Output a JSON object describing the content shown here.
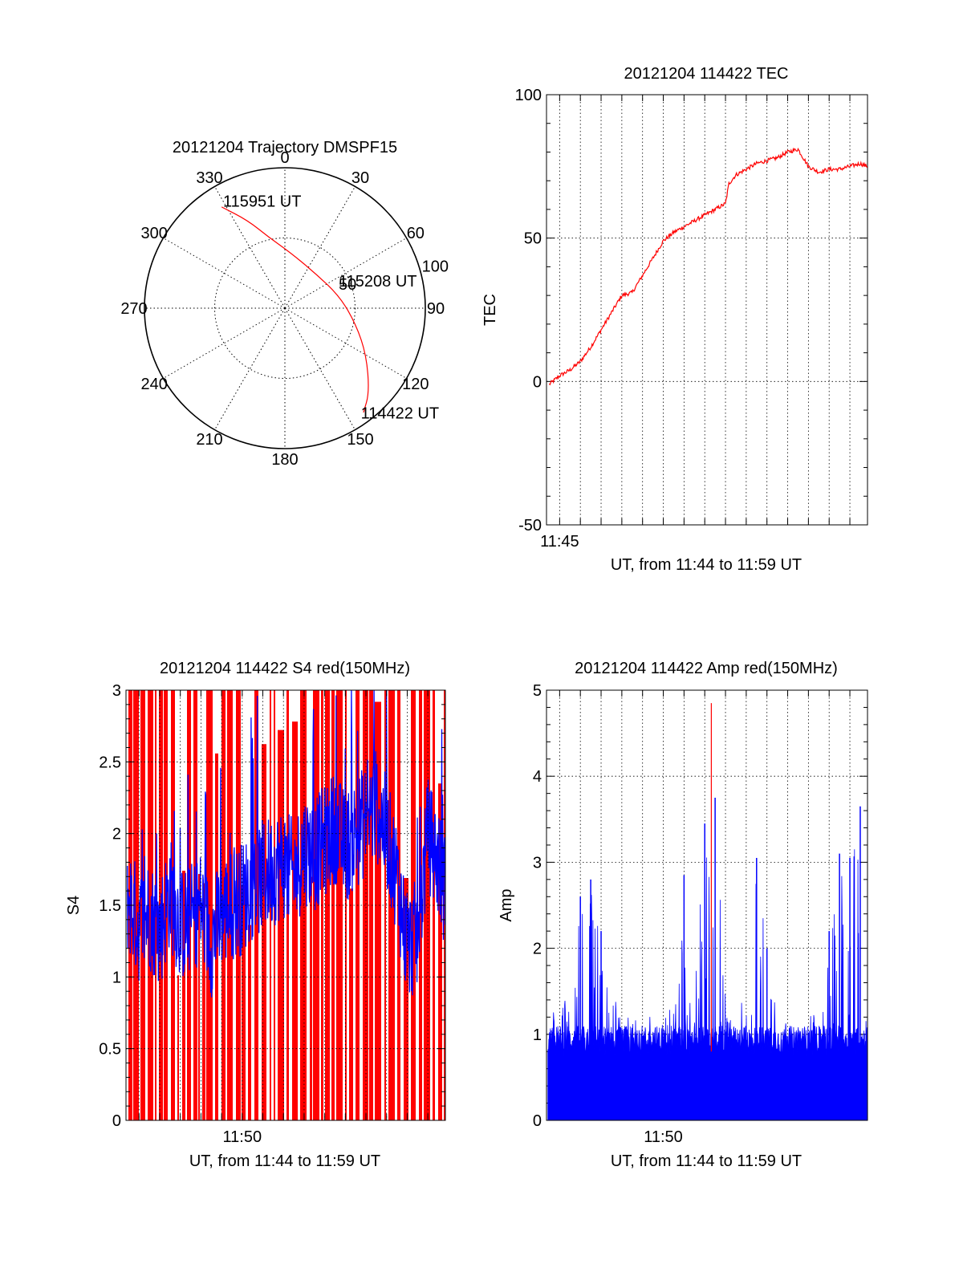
{
  "colors": {
    "red": "#ff0000",
    "blue": "#0000ff",
    "black": "#000000"
  },
  "chart_data": [
    {
      "type": "polar-trajectory",
      "title": "20121204 Trajectory DMSPF15",
      "angle_labels": [
        "0",
        "30",
        "60",
        "90",
        "120",
        "150",
        "180",
        "210",
        "240",
        "270",
        "300",
        "330"
      ],
      "radial_ticks": [
        50,
        100
      ],
      "radial_tick_labels": [
        "50",
        "100"
      ],
      "rmax": 100,
      "grid": "dotted",
      "annotations": [
        {
          "text": "115951 UT",
          "az": 330,
          "r": 88
        },
        {
          "text": "115208 UT",
          "az": 63,
          "r": 43
        },
        {
          "text": "114422 UT",
          "az": 144,
          "r": 92
        }
      ],
      "trajectory": [
        {
          "az": 328,
          "r": 85
        },
        {
          "az": 337,
          "r": 68
        },
        {
          "az": 347,
          "r": 52
        },
        {
          "az": 5,
          "r": 40
        },
        {
          "az": 40,
          "r": 33
        },
        {
          "az": 78,
          "r": 40
        },
        {
          "az": 103,
          "r": 52
        },
        {
          "az": 120,
          "r": 67
        },
        {
          "az": 135,
          "r": 85
        },
        {
          "az": 143,
          "r": 93
        }
      ]
    },
    {
      "type": "line",
      "title": "20121204 114422 TEC",
      "xlabel": "UT, from 11:44 to 11:59 UT",
      "ylabel": "TEC",
      "xlim": [
        "11:44:22",
        "11:59:51"
      ],
      "ylim": [
        -50,
        100
      ],
      "yticks": [
        "-50",
        "0",
        "50",
        "100"
      ],
      "xtick_labels": [
        "11:45"
      ],
      "grid": true,
      "series": [
        {
          "color": "red",
          "x": [
            "11:44:30",
            "11:45:00",
            "11:45:30",
            "11:46:00",
            "11:46:30",
            "11:47:00",
            "11:47:30",
            "11:48:00",
            "11:48:30",
            "11:49:00",
            "11:49:30",
            "11:50:00",
            "11:50:30",
            "11:51:00",
            "11:51:30",
            "11:52:00",
            "11:52:30",
            "11:53:00",
            "11:53:10",
            "11:53:30",
            "11:54:00",
            "11:54:30",
            "11:55:00",
            "11:55:30",
            "11:56:00",
            "11:56:30",
            "11:57:00",
            "11:57:30",
            "11:58:00",
            "11:58:30",
            "11:59:00",
            "11:59:30",
            "11:59:50"
          ],
          "y": [
            -1,
            2,
            4,
            7,
            12,
            18,
            24,
            30,
            31,
            37,
            43,
            49,
            52,
            54,
            56,
            58,
            60,
            62,
            69,
            72,
            74,
            76,
            77,
            78,
            80,
            81,
            75,
            73,
            74,
            74,
            75,
            76,
            75
          ]
        }
      ]
    },
    {
      "type": "bar",
      "title": "20121204 114422 S4 red(150MHz)",
      "xlabel": "UT, from 11:44 to 11:59 UT",
      "ylabel": "S4",
      "xlim": [
        "11:44:22",
        "11:59:51"
      ],
      "ylim": [
        0,
        3
      ],
      "yticks": [
        "0",
        "0.5",
        "1",
        "1.5",
        "2",
        "2.5",
        "3"
      ],
      "xtick_labels": [
        "11:50"
      ],
      "grid": true,
      "series": [
        {
          "color": "red",
          "style": "dense-vertical-bars",
          "values_range": [
            0,
            3
          ]
        },
        {
          "color": "blue",
          "style": "noisy-line",
          "x": [
            "11:44:30",
            "11:45:00",
            "11:45:30",
            "11:46:00",
            "11:46:30",
            "11:47:00",
            "11:47:30",
            "11:48:00",
            "11:48:30",
            "11:49:00",
            "11:49:30",
            "11:50:00",
            "11:50:30",
            "11:51:00",
            "11:51:30",
            "11:52:00",
            "11:52:30",
            "11:53:00",
            "11:53:30",
            "11:54:00",
            "11:54:30",
            "11:55:00",
            "11:55:30",
            "11:56:00",
            "11:56:30",
            "11:57:00",
            "11:57:30",
            "11:58:00",
            "11:58:30",
            "11:59:00",
            "11:59:30",
            "11:59:50"
          ],
          "y": [
            1.55,
            1.35,
            1.45,
            1.3,
            1.6,
            1.35,
            1.4,
            1.5,
            1.25,
            1.45,
            1.5,
            1.55,
            1.65,
            1.7,
            1.75,
            1.8,
            1.7,
            1.9,
            1.85,
            1.95,
            2.05,
            1.9,
            2.0,
            2.1,
            2.2,
            2.0,
            1.7,
            1.2,
            1.3,
            2.0,
            1.8,
            1.6
          ]
        }
      ]
    },
    {
      "type": "bar",
      "title": "20121204 114422 Amp red(150MHz)",
      "xlabel": "UT, from 11:44 to 11:59 UT",
      "ylabel": "Amp",
      "xlim": [
        "11:44:22",
        "11:59:51"
      ],
      "ylim": [
        0,
        5
      ],
      "yticks": [
        "0",
        "1",
        "2",
        "3",
        "4",
        "5"
      ],
      "xtick_labels": [
        "11:50"
      ],
      "grid": true,
      "series": [
        {
          "color": "blue",
          "style": "dense-vertical-bars",
          "x": [
            "11:44:30",
            "11:45:00",
            "11:45:30",
            "11:46:00",
            "11:46:30",
            "11:47:00",
            "11:47:30",
            "11:48:00",
            "11:48:30",
            "11:49:00",
            "11:49:30",
            "11:50:00",
            "11:50:30",
            "11:51:00",
            "11:51:30",
            "11:52:00",
            "11:52:30",
            "11:53:00",
            "11:53:30",
            "11:54:00",
            "11:54:30",
            "11:55:00",
            "11:55:30",
            "11:56:00",
            "11:56:30",
            "11:57:00",
            "11:57:30",
            "11:58:00",
            "11:58:30",
            "11:59:00",
            "11:59:30",
            "11:59:50"
          ],
          "y": [
            1.3,
            1.2,
            1.6,
            2.6,
            2.8,
            2.2,
            1.5,
            1.3,
            1.2,
            1.1,
            1.3,
            1.2,
            1.4,
            2.85,
            1.5,
            3.45,
            3.75,
            1.4,
            1.3,
            1.5,
            3.05,
            2.0,
            1.3,
            1.2,
            1.1,
            1.2,
            1.3,
            2.2,
            3.1,
            3.05,
            3.65,
            1.3
          ]
        },
        {
          "color": "red",
          "style": "spike",
          "x": "11:52:19",
          "y": 4.85
        }
      ]
    }
  ]
}
